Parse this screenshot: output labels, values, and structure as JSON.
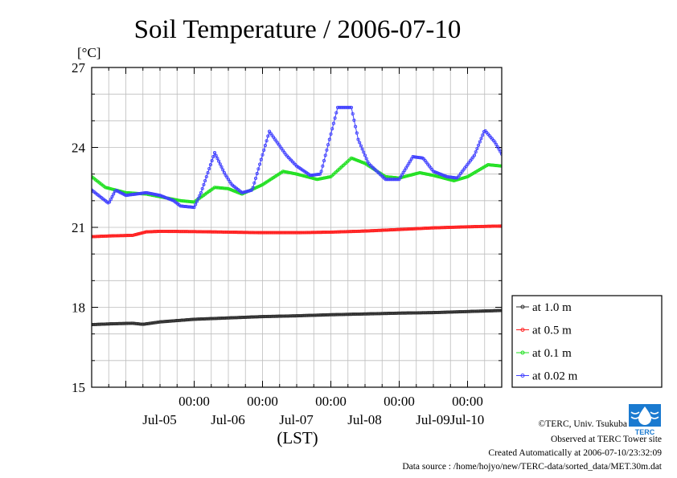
{
  "chart_data": {
    "type": "line",
    "title": "Soil Temperature / 2006-07-10",
    "ylabel": "[°C]",
    "xlabel": "(LST)",
    "ylim": [
      15,
      27
    ],
    "yticks": [
      15,
      18,
      21,
      24,
      27
    ],
    "xlim_days": [
      -0.5,
      5.5
    ],
    "xticks_major": [
      {
        "day": 1,
        "time": "00:00",
        "date": "Jul-05"
      },
      {
        "day": 2,
        "time": "00:00",
        "date": "Jul-06"
      },
      {
        "day": 3,
        "time": "00:00",
        "date": "Jul-07"
      },
      {
        "day": 4,
        "time": "00:00",
        "date": "Jul-08"
      },
      {
        "day": 5,
        "time": "00:00",
        "date": "Jul-09"
      }
    ],
    "date_label_extra": {
      "day": 5.5,
      "date": "Jul-10"
    },
    "legend_position": "right",
    "grid": true,
    "series": [
      {
        "name": "at 1.0 m",
        "color": "#303030",
        "x": [
          0,
          0.3,
          0.6,
          0.75,
          1.0,
          1.5,
          2,
          2.5,
          3,
          3.5,
          4,
          4.5,
          5,
          5.5,
          6
        ],
        "values": [
          17.35,
          17.38,
          17.4,
          17.36,
          17.45,
          17.55,
          17.6,
          17.65,
          17.68,
          17.72,
          17.75,
          17.78,
          17.8,
          17.84,
          17.88
        ]
      },
      {
        "name": "at 0.5 m",
        "color": "#ff2020",
        "x": [
          0,
          0.3,
          0.6,
          0.8,
          1.0,
          1.5,
          2,
          2.5,
          3,
          3.5,
          4,
          4.5,
          5,
          5.5,
          6
        ],
        "values": [
          20.65,
          20.68,
          20.7,
          20.83,
          20.85,
          20.84,
          20.82,
          20.8,
          20.8,
          20.82,
          20.86,
          20.92,
          20.98,
          21.02,
          21.05
        ]
      },
      {
        "name": "at 0.1 m",
        "color": "#20e020",
        "x": [
          0,
          0.2,
          0.5,
          0.8,
          1.0,
          1.3,
          1.5,
          1.8,
          2.0,
          2.2,
          2.5,
          2.8,
          3.0,
          3.3,
          3.5,
          3.8,
          4.0,
          4.3,
          4.5,
          4.8,
          5.0,
          5.3,
          5.5,
          5.8,
          6.0
        ],
        "values": [
          22.9,
          22.5,
          22.3,
          22.25,
          22.15,
          22.0,
          21.95,
          22.5,
          22.45,
          22.25,
          22.6,
          23.1,
          23.0,
          22.8,
          22.9,
          23.6,
          23.4,
          22.9,
          22.85,
          23.05,
          22.95,
          22.75,
          22.9,
          23.35,
          23.3
        ]
      },
      {
        "name": "at 0.02 m",
        "color": "#4040ff",
        "x": [
          0,
          0.25,
          0.35,
          0.5,
          0.8,
          1.0,
          1.2,
          1.3,
          1.5,
          1.6,
          1.8,
          1.95,
          2.05,
          2.2,
          2.35,
          2.6,
          2.85,
          3.0,
          3.2,
          3.35,
          3.6,
          3.8,
          3.9,
          4.05,
          4.3,
          4.5,
          4.7,
          4.85,
          5.0,
          5.2,
          5.35,
          5.6,
          5.75,
          5.9,
          6.0
        ],
        "values": [
          22.4,
          21.9,
          22.4,
          22.2,
          22.3,
          22.2,
          22.0,
          21.8,
          21.75,
          22.3,
          23.8,
          23.0,
          22.6,
          22.3,
          22.4,
          24.6,
          23.7,
          23.3,
          22.95,
          23.0,
          25.5,
          25.5,
          24.3,
          23.4,
          22.8,
          22.8,
          23.65,
          23.6,
          23.1,
          22.9,
          22.85,
          23.7,
          24.65,
          24.2,
          23.75
        ]
      }
    ]
  },
  "footer": {
    "copyright": "©TERC, Univ. Tsukuba",
    "observed": "Observed at TERC Tower site",
    "created": "Created Automatically at 2006-07-10/23:32:09",
    "source": "Data source : /home/hojyo/new/TERC-data/sorted_data/MET.30m.dat",
    "logo_text": "TERC"
  }
}
